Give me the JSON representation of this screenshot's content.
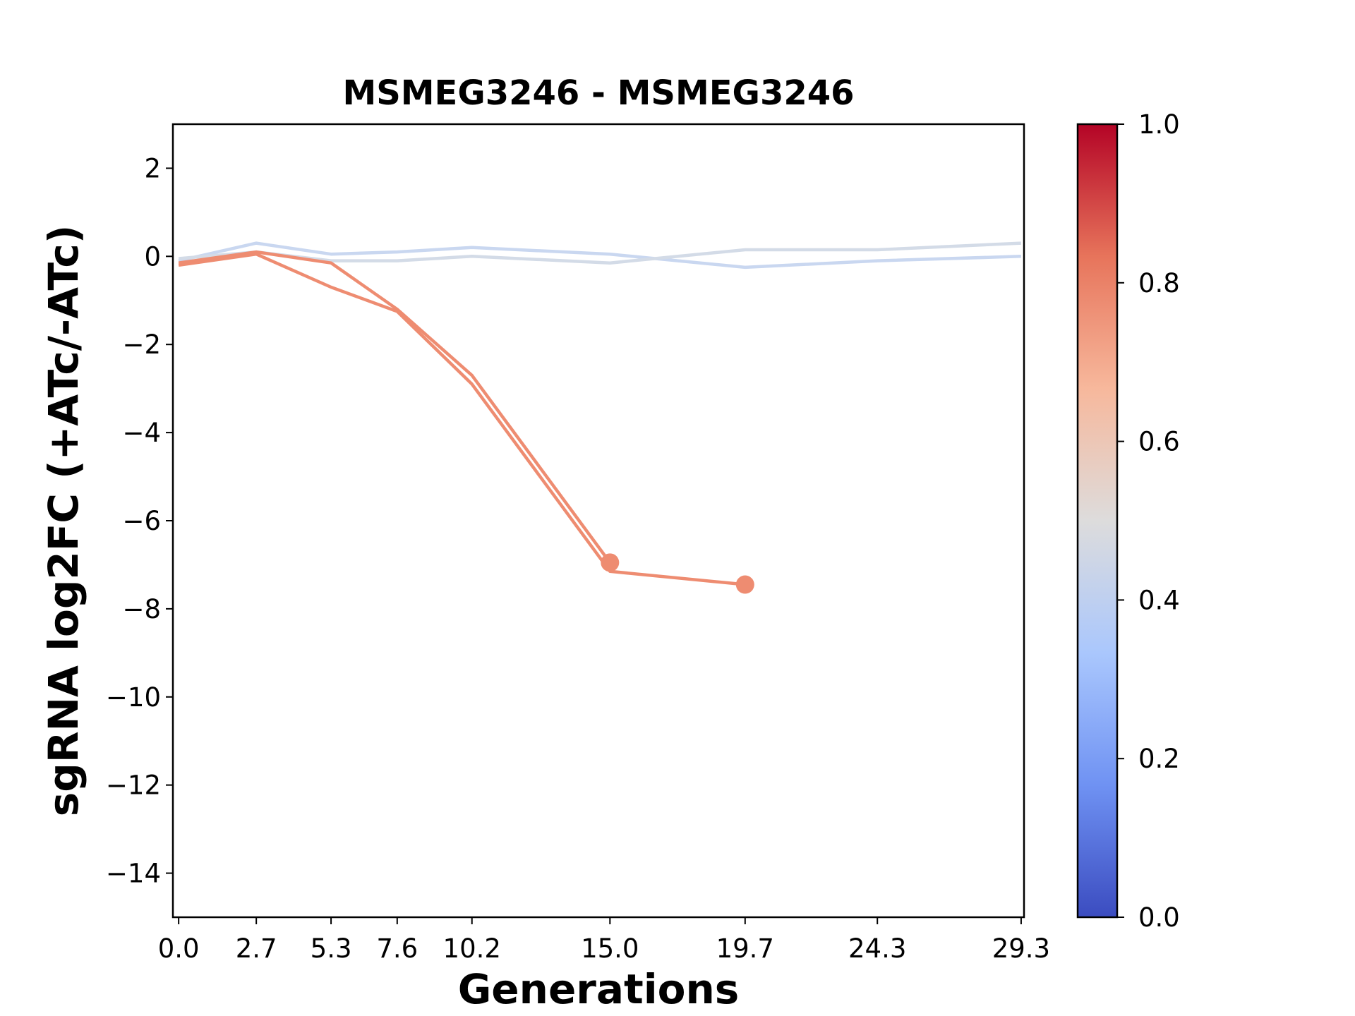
{
  "chart_data": {
    "type": "line",
    "title": "MSMEG3246 - MSMEG3246",
    "xlabel": "Generations",
    "ylabel": "sgRNA log2FC (+ATc/-ATc)",
    "x_ticks": [
      "0.0",
      "2.7",
      "5.3",
      "7.6",
      "10.2",
      "15.0",
      "19.7",
      "24.3",
      "29.3"
    ],
    "y_ticks": [
      "2",
      "0",
      "−2",
      "−4",
      "−6",
      "−8",
      "−10",
      "−12",
      "−14"
    ],
    "xlim": [
      -0.2,
      29.4
    ],
    "ylim": [
      -15,
      3
    ],
    "grid": false,
    "colormap": "coolwarm",
    "colorbar": {
      "range": [
        0.0,
        1.0
      ],
      "ticks": [
        "0.0",
        "0.2",
        "0.4",
        "0.6",
        "0.8",
        "1.0"
      ],
      "colors": [
        "#3b4cc0",
        "#6f92f3",
        "#aac7fd",
        "#dddcdc",
        "#f7b89c",
        "#e7745b",
        "#b40426"
      ]
    },
    "series": [
      {
        "color": "#c9d7f0",
        "x": [
          0.0,
          2.7,
          5.3,
          7.6,
          10.2,
          15.0,
          19.7,
          24.3,
          29.3
        ],
        "y": [
          -0.1,
          0.3,
          0.05,
          0.1,
          0.2,
          0.05,
          -0.25,
          -0.1,
          0.0
        ],
        "end_marker": false
      },
      {
        "color": "#d3dbe7",
        "x": [
          0.0,
          2.7,
          5.3,
          7.6,
          10.2,
          15.0,
          19.7,
          24.3,
          29.3
        ],
        "y": [
          -0.05,
          0.1,
          -0.1,
          -0.1,
          0.0,
          -0.15,
          0.15,
          0.15,
          0.3
        ],
        "end_marker": false
      },
      {
        "color": "#ee8c71",
        "x": [
          0.0,
          2.7,
          5.3,
          7.6,
          10.2,
          15.0
        ],
        "y": [
          -0.15,
          0.1,
          -0.15,
          -1.2,
          -2.7,
          -6.95
        ],
        "end_marker": true
      },
      {
        "color": "#ee8c71",
        "x": [
          0.0,
          2.7,
          5.3,
          7.6,
          10.2,
          15.0,
          19.7
        ],
        "y": [
          -0.2,
          0.05,
          -0.7,
          -1.25,
          -2.9,
          -7.15,
          -7.45
        ],
        "end_marker": true
      }
    ]
  }
}
